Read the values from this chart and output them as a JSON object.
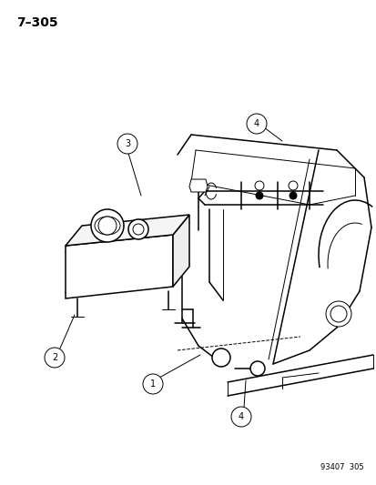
{
  "title": "7–305",
  "part_number": "93407  305",
  "bg": "#ffffff",
  "lc": "#000000",
  "figsize": [
    4.14,
    5.33
  ],
  "dpi": 100
}
